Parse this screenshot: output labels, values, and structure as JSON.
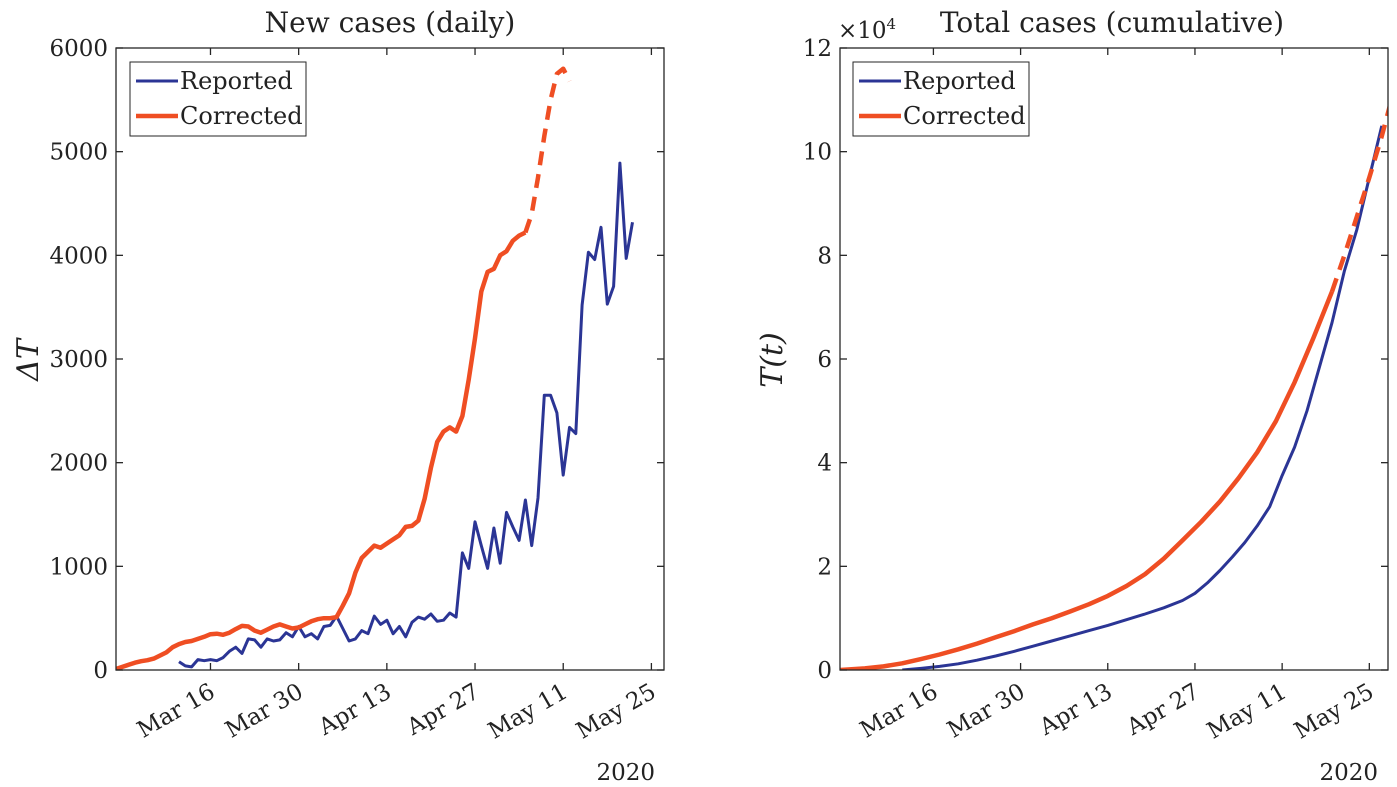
{
  "colors": {
    "reported": "#2b3595",
    "corrected": "#ef4e23",
    "axis": "#262626"
  },
  "chart_data": [
    {
      "type": "line",
      "title": "New cases (daily)",
      "xlabel": "",
      "ylabel": "ΔT",
      "year_label": "2020",
      "x_tick_labels": [
        "Mar 16",
        "Mar 30",
        "Apr 13",
        "Apr 27",
        "May 11",
        "May 25"
      ],
      "x_tick_days": [
        16,
        30,
        44,
        58,
        72,
        86
      ],
      "x_range_days": [
        1,
        88
      ],
      "ylim": [
        0,
        6000
      ],
      "y_ticks": [
        0,
        1000,
        2000,
        3000,
        4000,
        5000,
        6000
      ],
      "y_tick_labels": [
        "0",
        "1000",
        "2000",
        "3000",
        "4000",
        "5000",
        "6000"
      ],
      "y_exponent_label": "",
      "legend": {
        "position": "top-left",
        "entries": [
          "Reported",
          "Corrected"
        ]
      },
      "series": [
        {
          "name": "Reported",
          "color_key": "reported",
          "style": "solid",
          "points": [
            [
              11,
              80
            ],
            [
              12,
              40
            ],
            [
              13,
              30
            ],
            [
              14,
              100
            ],
            [
              15,
              90
            ],
            [
              16,
              100
            ],
            [
              17,
              90
            ],
            [
              18,
              120
            ],
            [
              19,
              180
            ],
            [
              20,
              220
            ],
            [
              21,
              160
            ],
            [
              22,
              300
            ],
            [
              23,
              290
            ],
            [
              24,
              220
            ],
            [
              25,
              300
            ],
            [
              26,
              280
            ],
            [
              27,
              290
            ],
            [
              28,
              360
            ],
            [
              29,
              320
            ],
            [
              30,
              420
            ],
            [
              31,
              320
            ],
            [
              32,
              350
            ],
            [
              33,
              300
            ],
            [
              34,
              420
            ],
            [
              35,
              430
            ],
            [
              36,
              520
            ],
            [
              37,
              400
            ],
            [
              38,
              280
            ],
            [
              39,
              300
            ],
            [
              40,
              380
            ],
            [
              41,
              350
            ],
            [
              42,
              520
            ],
            [
              43,
              440
            ],
            [
              44,
              480
            ],
            [
              45,
              350
            ],
            [
              46,
              420
            ],
            [
              47,
              320
            ],
            [
              48,
              460
            ],
            [
              49,
              510
            ],
            [
              50,
              490
            ],
            [
              51,
              540
            ],
            [
              52,
              470
            ],
            [
              53,
              480
            ],
            [
              54,
              550
            ],
            [
              55,
              510
            ],
            [
              56,
              1130
            ],
            [
              57,
              980
            ],
            [
              58,
              1430
            ],
            [
              59,
              1200
            ],
            [
              60,
              980
            ],
            [
              61,
              1370
            ],
            [
              62,
              1030
            ],
            [
              63,
              1520
            ],
            [
              64,
              1380
            ],
            [
              65,
              1250
            ],
            [
              66,
              1640
            ],
            [
              67,
              1200
            ],
            [
              68,
              1660
            ],
            [
              69,
              2650
            ],
            [
              70,
              2650
            ],
            [
              71,
              2480
            ],
            [
              72,
              1880
            ],
            [
              73,
              2340
            ],
            [
              74,
              2280
            ],
            [
              75,
              3520
            ],
            [
              76,
              4030
            ],
            [
              77,
              3960
            ],
            [
              78,
              4270
            ],
            [
              79,
              3530
            ],
            [
              80,
              3700
            ],
            [
              81,
              4890
            ],
            [
              82,
              3970
            ],
            [
              83,
              4320
            ]
          ]
        },
        {
          "name": "Corrected",
          "color_key": "corrected",
          "style": "solid",
          "points": [
            [
              1,
              10
            ],
            [
              2,
              30
            ],
            [
              3,
              50
            ],
            [
              4,
              70
            ],
            [
              5,
              85
            ],
            [
              6,
              95
            ],
            [
              7,
              110
            ],
            [
              8,
              140
            ],
            [
              9,
              170
            ],
            [
              10,
              220
            ],
            [
              11,
              250
            ],
            [
              12,
              270
            ],
            [
              13,
              280
            ],
            [
              14,
              300
            ],
            [
              15,
              320
            ],
            [
              16,
              345
            ],
            [
              17,
              350
            ],
            [
              18,
              340
            ],
            [
              19,
              360
            ],
            [
              20,
              395
            ],
            [
              21,
              425
            ],
            [
              22,
              420
            ],
            [
              23,
              380
            ],
            [
              24,
              360
            ],
            [
              25,
              390
            ],
            [
              26,
              420
            ],
            [
              27,
              440
            ],
            [
              28,
              420
            ],
            [
              29,
              400
            ],
            [
              30,
              410
            ],
            [
              31,
              440
            ],
            [
              32,
              470
            ],
            [
              33,
              490
            ],
            [
              34,
              500
            ],
            [
              35,
              500
            ],
            [
              36,
              510
            ],
            [
              37,
              620
            ],
            [
              38,
              740
            ],
            [
              39,
              940
            ],
            [
              40,
              1080
            ],
            [
              41,
              1140
            ],
            [
              42,
              1200
            ],
            [
              43,
              1180
            ],
            [
              44,
              1220
            ],
            [
              45,
              1260
            ],
            [
              46,
              1300
            ],
            [
              47,
              1380
            ],
            [
              48,
              1390
            ],
            [
              49,
              1440
            ],
            [
              50,
              1650
            ],
            [
              51,
              1950
            ],
            [
              52,
              2200
            ],
            [
              53,
              2300
            ],
            [
              54,
              2340
            ],
            [
              55,
              2300
            ],
            [
              56,
              2450
            ],
            [
              57,
              2800
            ],
            [
              58,
              3200
            ],
            [
              59,
              3650
            ],
            [
              60,
              3840
            ],
            [
              61,
              3870
            ],
            [
              62,
              4000
            ],
            [
              63,
              4040
            ],
            [
              64,
              4140
            ],
            [
              65,
              4190
            ],
            [
              66,
              4220
            ]
          ]
        },
        {
          "name": "",
          "color_key": "corrected",
          "style": "dashed",
          "points": [
            [
              66,
              4220
            ],
            [
              67,
              4400
            ],
            [
              68,
              4750
            ],
            [
              69,
              5150
            ],
            [
              70,
              5500
            ],
            [
              71,
              5750
            ],
            [
              72,
              5800
            ],
            [
              73,
              5680
            ]
          ]
        }
      ]
    },
    {
      "type": "line",
      "title": "Total cases (cumulative)",
      "xlabel": "",
      "ylabel": "T(t)",
      "year_label": "2020",
      "x_tick_labels": [
        "Mar 16",
        "Mar 30",
        "Apr 13",
        "Apr 27",
        "May 11",
        "May 25"
      ],
      "x_tick_days": [
        16,
        30,
        44,
        58,
        72,
        86
      ],
      "x_range_days": [
        1,
        89
      ],
      "ylim": [
        0,
        120000
      ],
      "y_ticks": [
        0,
        20000,
        40000,
        60000,
        80000,
        100000,
        120000
      ],
      "y_tick_labels": [
        "0",
        "2",
        "4",
        "6",
        "8",
        "10",
        "12"
      ],
      "y_exponent_label": "×10",
      "y_exponent_power": "4",
      "legend": {
        "position": "top-left",
        "entries": [
          "Reported",
          "Corrected"
        ]
      },
      "series": [
        {
          "name": "Reported",
          "color_key": "reported",
          "style": "solid",
          "points": [
            [
              11,
              0
            ],
            [
              14,
              300
            ],
            [
              17,
              700
            ],
            [
              20,
              1200
            ],
            [
              23,
              1900
            ],
            [
              26,
              2700
            ],
            [
              29,
              3600
            ],
            [
              32,
              4600
            ],
            [
              35,
              5600
            ],
            [
              38,
              6600
            ],
            [
              41,
              7600
            ],
            [
              44,
              8600
            ],
            [
              47,
              9700
            ],
            [
              50,
              10800
            ],
            [
              53,
              12000
            ],
            [
              56,
              13400
            ],
            [
              58,
              14800
            ],
            [
              60,
              16800
            ],
            [
              62,
              19200
            ],
            [
              64,
              21800
            ],
            [
              66,
              24600
            ],
            [
              68,
              27800
            ],
            [
              70,
              31500
            ],
            [
              72,
              37500
            ],
            [
              74,
              43000
            ],
            [
              76,
              50000
            ],
            [
              78,
              58500
            ],
            [
              80,
              67000
            ],
            [
              82,
              77000
            ],
            [
              84,
              85000
            ],
            [
              86,
              95000
            ],
            [
              88,
              105000
            ]
          ]
        },
        {
          "name": "Corrected",
          "color_key": "corrected",
          "style": "solid",
          "points": [
            [
              1,
              0
            ],
            [
              5,
              300
            ],
            [
              8,
              700
            ],
            [
              11,
              1300
            ],
            [
              14,
              2100
            ],
            [
              17,
              3000
            ],
            [
              20,
              4000
            ],
            [
              23,
              5100
            ],
            [
              26,
              6300
            ],
            [
              29,
              7500
            ],
            [
              32,
              8800
            ],
            [
              35,
              10000
            ],
            [
              38,
              11300
            ],
            [
              41,
              12700
            ],
            [
              44,
              14300
            ],
            [
              47,
              16200
            ],
            [
              50,
              18500
            ],
            [
              53,
              21500
            ],
            [
              56,
              25000
            ],
            [
              59,
              28600
            ],
            [
              62,
              32500
            ],
            [
              65,
              37000
            ],
            [
              68,
              42000
            ],
            [
              71,
              48000
            ],
            [
              74,
              55500
            ],
            [
              77,
              64000
            ],
            [
              80,
              73000
            ]
          ]
        },
        {
          "name": "",
          "color_key": "corrected",
          "style": "dashed",
          "points": [
            [
              80,
              73000
            ],
            [
              82,
              80000
            ],
            [
              84,
              87500
            ],
            [
              86,
              95000
            ],
            [
              88,
              103000
            ],
            [
              90,
              112000
            ],
            [
              92,
              118000
            ]
          ]
        }
      ]
    }
  ]
}
